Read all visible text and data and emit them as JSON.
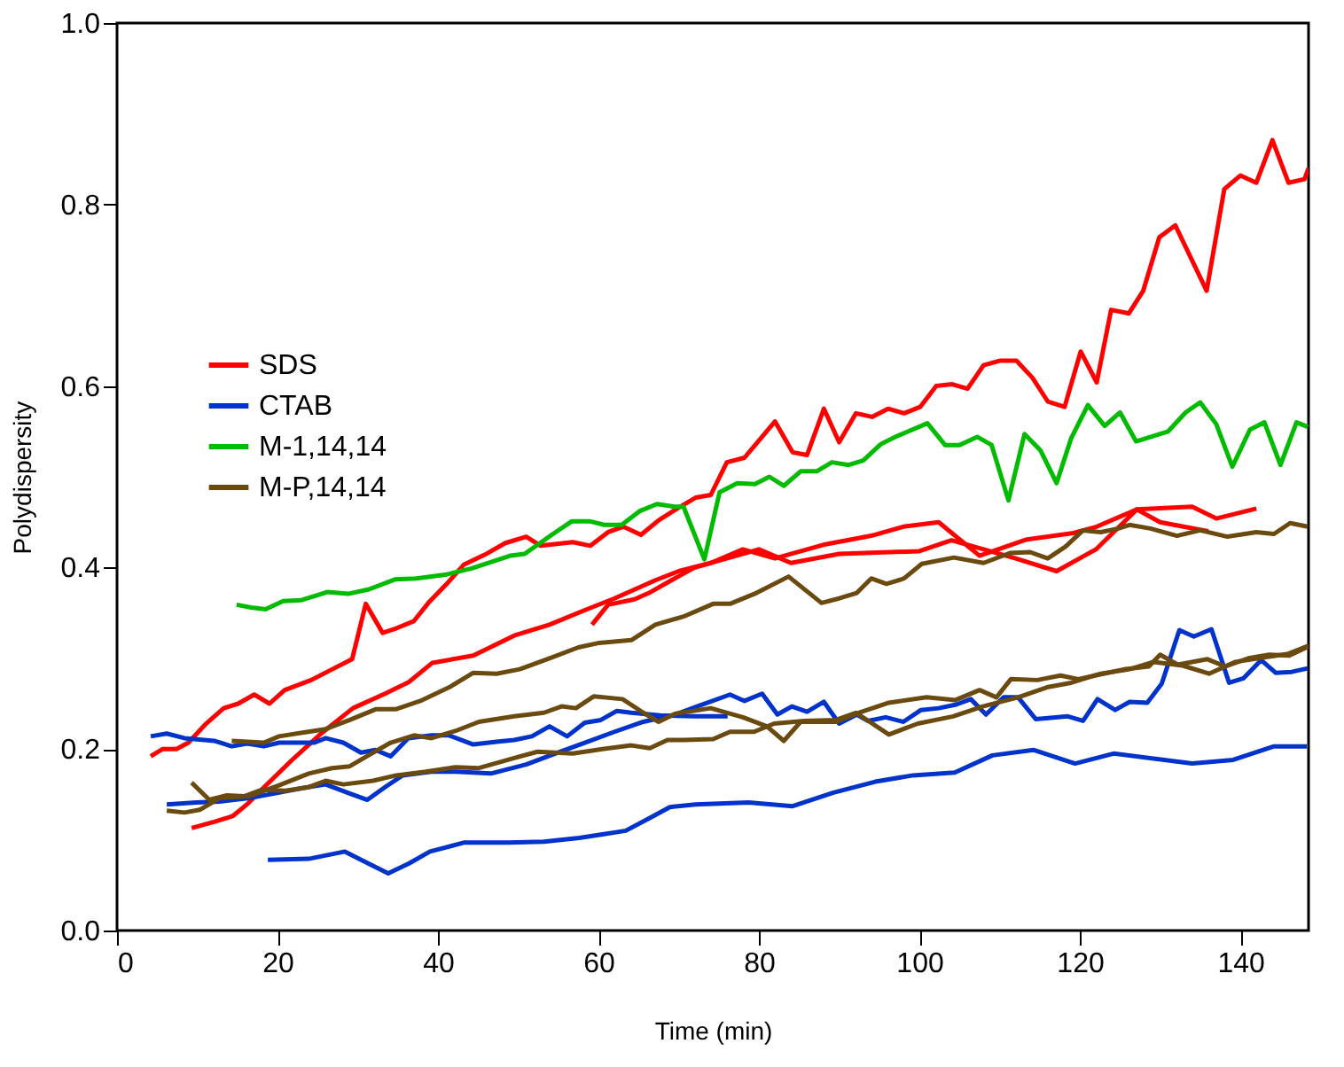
{
  "chart_data": {
    "type": "line",
    "xlabel": "Time (min)",
    "ylabel": "Polydispersity",
    "xlim": [
      0,
      148.5
    ],
    "xticks": [
      0,
      20,
      40,
      60,
      80,
      100,
      120,
      140
    ],
    "ylim": [
      0,
      1
    ],
    "yticks": [
      {
        "value": 0,
        "label": "0.0"
      },
      0.2,
      0.4,
      0.6,
      0.8,
      {
        "value": 1,
        "label": "1.0"
      }
    ],
    "grid": false,
    "legend": "left",
    "marker": "none",
    "line_style": "solid",
    "series": [
      {
        "name": "SDS",
        "color": "#ff0000",
        "x": [
          4.2,
          5.7,
          7.4,
          8.9,
          11.1,
          13.3,
          15.1,
          17.1,
          19,
          20.9,
          24.2,
          26.4,
          29.3,
          31,
          33.1,
          34.8,
          37,
          38.8,
          41.1,
          43.2,
          45.8,
          48.4,
          51,
          52.8,
          56.8,
          59,
          61.2,
          63.1,
          65.3,
          67.5,
          70,
          72.1,
          74,
          76,
          78.2,
          82,
          84.2,
          86,
          88.1,
          90,
          92.1,
          94.1,
          96.1,
          98.1,
          100.1,
          102.1,
          104.1,
          106,
          108,
          110.1,
          112.1,
          114.1,
          116,
          118.1,
          120.1,
          122.1,
          123.9,
          126.1,
          127.9,
          129.9,
          131.9,
          135.8,
          138,
          140,
          142,
          144,
          146,
          148,
          148.5
        ],
        "values": [
          0.192,
          0.2,
          0.2,
          0.207,
          0.228,
          0.245,
          0.25,
          0.26,
          0.25,
          0.265,
          0.276,
          0.286,
          0.299,
          0.36,
          0.328,
          0.333,
          0.341,
          0.361,
          0.382,
          0.403,
          0.414,
          0.427,
          0.434,
          0.424,
          0.428,
          0.424,
          0.439,
          0.445,
          0.436,
          0.452,
          0.466,
          0.477,
          0.48,
          0.516,
          0.521,
          0.561,
          0.527,
          0.524,
          0.575,
          0.538,
          0.57,
          0.566,
          0.575,
          0.57,
          0.577,
          0.6,
          0.602,
          0.597,
          0.623,
          0.628,
          0.628,
          0.609,
          0.583,
          0.577,
          0.638,
          0.604,
          0.684,
          0.68,
          0.705,
          0.764,
          0.777,
          0.705,
          0.817,
          0.832,
          0.824,
          0.871,
          0.824,
          0.828,
          0.84
        ]
      },
      {
        "color": "#ff0000",
        "x": [
          9.3,
          12.2,
          14.4,
          16.2,
          18,
          21.7,
          25.3,
          29.4,
          33.4,
          36.4,
          39.3,
          44.4,
          49.5,
          53.9,
          58.3,
          62,
          67.1,
          70,
          74,
          78,
          82,
          88,
          94,
          98,
          102.4,
          107.5,
          113.4,
          119.2,
          122.1,
          127.1,
          134,
          137,
          142
        ],
        "values": [
          0.113,
          0.12,
          0.126,
          0.139,
          0.155,
          0.187,
          0.216,
          0.245,
          0.261,
          0.274,
          0.295,
          0.303,
          0.325,
          0.337,
          0.353,
          0.366,
          0.386,
          0.396,
          0.405,
          0.42,
          0.41,
          0.425,
          0.435,
          0.445,
          0.45,
          0.413,
          0.431,
          0.438,
          0.445,
          0.464,
          0.467,
          0.454,
          0.465
        ]
      },
      {
        "color": "#ff0000",
        "x": [
          59.2,
          61.2,
          64.5,
          66.3,
          68.9,
          72,
          76,
          80,
          84,
          90,
          100,
          104,
          108,
          112,
          117.1,
          122,
          127.1,
          130,
          136
        ],
        "values": [
          0.337,
          0.359,
          0.365,
          0.372,
          0.385,
          0.4,
          0.41,
          0.42,
          0.405,
          0.415,
          0.418,
          0.43,
          0.42,
          0.41,
          0.396,
          0.42,
          0.464,
          0.45,
          0.44
        ]
      },
      {
        "name": "CTAB",
        "color": "#0033cc",
        "x": [
          4.2,
          6.2,
          8.4,
          12.1,
          14.3,
          16.2,
          18.3,
          20.2,
          24.6,
          26,
          28.2,
          30.4,
          32.2,
          34.1,
          36.3,
          39.2,
          41.4,
          44.4,
          47.3,
          49.5,
          51.7,
          53.9,
          56.1,
          58.3,
          60.3,
          62.3,
          64.1,
          67.7,
          72,
          76.1
        ],
        "values": [
          0.214,
          0.217,
          0.212,
          0.209,
          0.203,
          0.206,
          0.203,
          0.207,
          0.207,
          0.212,
          0.207,
          0.196,
          0.199,
          0.192,
          0.212,
          0.215,
          0.215,
          0.205,
          0.208,
          0.21,
          0.214,
          0.225,
          0.214,
          0.229,
          0.232,
          0.242,
          0.24,
          0.237,
          0.236,
          0.236
        ]
      },
      {
        "color": "#0033cc",
        "x": [
          6.2,
          9.9,
          12.8,
          16.5,
          20.2,
          23.1,
          26,
          29,
          31.2,
          33.4,
          35.6,
          39.2,
          42.2,
          46.6,
          51,
          54.6,
          58.3,
          62,
          65.6,
          69.6,
          72.3,
          76.4,
          78.2,
          80.4,
          82.3,
          84.1,
          86,
          88.1,
          90,
          92.2,
          93.6,
          95.8,
          98,
          100.2,
          102.4,
          104.6,
          106.4,
          108.3,
          110.5,
          112.3,
          114.5,
          118.5,
          120.4,
          122.2,
          124.4,
          126.2,
          128.4,
          130.2,
          132.4,
          134.2,
          136.4,
          138.6,
          140.4,
          142.6,
          144.4,
          146.4,
          148.4
        ],
        "values": [
          0.139,
          0.141,
          0.142,
          0.146,
          0.152,
          0.157,
          0.161,
          0.151,
          0.144,
          0.158,
          0.171,
          0.175,
          0.175,
          0.173,
          0.183,
          0.195,
          0.207,
          0.219,
          0.23,
          0.238,
          0.247,
          0.26,
          0.253,
          0.261,
          0.238,
          0.247,
          0.241,
          0.252,
          0.228,
          0.238,
          0.231,
          0.235,
          0.23,
          0.243,
          0.245,
          0.249,
          0.255,
          0.238,
          0.257,
          0.257,
          0.233,
          0.236,
          0.231,
          0.255,
          0.243,
          0.252,
          0.251,
          0.272,
          0.331,
          0.324,
          0.332,
          0.273,
          0.278,
          0.298,
          0.284,
          0.285,
          0.289
        ]
      },
      {
        "color": "#0033cc",
        "x": [
          18.8,
          23.9,
          28.4,
          31.3,
          33.8,
          36.4,
          39,
          43.3,
          48.8,
          53.2,
          57.6,
          60.5,
          63.4,
          66.4,
          68.9,
          72.1,
          78.7,
          84.2,
          89.3,
          94.5,
          99.2,
          104.4,
          109.1,
          114.2,
          119.4,
          124.2,
          134,
          139.1,
          144.2,
          148.3
        ],
        "values": [
          0.078,
          0.079,
          0.087,
          0.074,
          0.063,
          0.074,
          0.087,
          0.097,
          0.097,
          0.098,
          0.102,
          0.106,
          0.11,
          0.124,
          0.136,
          0.139,
          0.141,
          0.137,
          0.152,
          0.164,
          0.171,
          0.174,
          0.193,
          0.199,
          0.184,
          0.195,
          0.184,
          0.188,
          0.203,
          0.203
        ]
      },
      {
        "name": "M-1,14,14",
        "color": "#00bb00",
        "x": [
          14.9,
          16.7,
          18.5,
          20.7,
          22.9,
          26.2,
          28.8,
          31.4,
          34.7,
          37.3,
          40.9,
          44.2,
          49,
          50.8,
          54.5,
          56.7,
          58.9,
          60.7,
          62.9,
          65.1,
          67.3,
          69.5,
          70.6,
          73.2,
          75.1,
          77.3,
          79.5,
          81.3,
          83.1,
          85.2,
          87.2,
          89.1,
          91.2,
          93,
          95.2,
          97,
          101,
          103.2,
          105,
          107.2,
          109,
          111.1,
          113.1,
          115.1,
          117.1,
          118.9,
          121,
          123.1,
          125,
          127,
          131,
          133.2,
          135,
          137,
          139,
          141.2,
          143,
          145,
          147,
          148.4
        ],
        "values": [
          0.359,
          0.356,
          0.354,
          0.363,
          0.364,
          0.373,
          0.371,
          0.376,
          0.387,
          0.388,
          0.392,
          0.399,
          0.413,
          0.415,
          0.438,
          0.451,
          0.451,
          0.447,
          0.447,
          0.462,
          0.47,
          0.467,
          0.467,
          0.409,
          0.483,
          0.493,
          0.492,
          0.5,
          0.49,
          0.506,
          0.506,
          0.516,
          0.513,
          0.518,
          0.536,
          0.544,
          0.559,
          0.535,
          0.535,
          0.544,
          0.535,
          0.474,
          0.547,
          0.529,
          0.493,
          0.542,
          0.579,
          0.556,
          0.571,
          0.539,
          0.55,
          0.571,
          0.582,
          0.558,
          0.511,
          0.552,
          0.56,
          0.513,
          0.56,
          0.555
        ]
      },
      {
        "name": "M-P,14,14",
        "color": "#6b4a10",
        "x": [
          14.3,
          18.3,
          20.2,
          23.1,
          26,
          29,
          32.3,
          34.8,
          37.8,
          41.4,
          44.4,
          47.3,
          50.2,
          53.9,
          57.5,
          60.1,
          64.1,
          67.1,
          70.6,
          74.3,
          76.4,
          79.7,
          83.7,
          87.8,
          90,
          92.2,
          94,
          95.9,
          98.1,
          100.3,
          104.3,
          108,
          111.3,
          113.8,
          116,
          118.2,
          120.4,
          122.6,
          124.8,
          126.2,
          128.8,
          132.1,
          135,
          138.4,
          142,
          144.2,
          146.2,
          148.4
        ],
        "values": [
          0.209,
          0.207,
          0.214,
          0.218,
          0.222,
          0.232,
          0.244,
          0.244,
          0.253,
          0.268,
          0.284,
          0.283,
          0.288,
          0.3,
          0.312,
          0.317,
          0.32,
          0.337,
          0.346,
          0.36,
          0.36,
          0.372,
          0.39,
          0.361,
          0.366,
          0.372,
          0.388,
          0.382,
          0.388,
          0.404,
          0.411,
          0.405,
          0.416,
          0.417,
          0.41,
          0.423,
          0.441,
          0.439,
          0.443,
          0.447,
          0.443,
          0.435,
          0.441,
          0.434,
          0.439,
          0.437,
          0.449,
          0.445
        ]
      },
      {
        "color": "#6b4a10",
        "x": [
          6.2,
          8.4,
          10.3,
          12.8,
          16.5,
          20.2,
          23.9,
          26.8,
          29,
          31.9,
          34.1,
          37,
          39.2,
          42.2,
          45.1,
          49.5,
          53.2,
          55.4,
          57.2,
          59.4,
          63,
          65.6,
          67.5,
          69.6,
          74,
          78,
          81,
          83.1,
          85.2,
          89.6,
          92.5,
          96.2,
          100.9,
          104.5,
          107.5,
          109.6,
          111.4,
          114.7,
          117.6,
          119.8,
          122.4,
          125.6,
          128.6,
          130,
          132.2,
          135.9,
          138.1,
          141,
          143.6,
          146.1,
          148.5
        ],
        "values": [
          0.132,
          0.13,
          0.133,
          0.146,
          0.148,
          0.16,
          0.173,
          0.179,
          0.181,
          0.196,
          0.207,
          0.215,
          0.212,
          0.22,
          0.23,
          0.236,
          0.24,
          0.247,
          0.245,
          0.258,
          0.255,
          0.24,
          0.23,
          0.239,
          0.245,
          0.235,
          0.225,
          0.209,
          0.23,
          0.23,
          0.24,
          0.251,
          0.257,
          0.254,
          0.265,
          0.257,
          0.277,
          0.276,
          0.281,
          0.277,
          0.282,
          0.288,
          0.291,
          0.304,
          0.293,
          0.299,
          0.291,
          0.3,
          0.304,
          0.303,
          0.313
        ]
      },
      {
        "color": "#6b4a10",
        "x": [
          9.3,
          11.5,
          13.7,
          15.9,
          18,
          21,
          23.9,
          26,
          28.2,
          31.9,
          34.8,
          38.5,
          42.2,
          45.1,
          49.5,
          52.4,
          56.8,
          60.5,
          64.1,
          66.4,
          68.6,
          70.6,
          74.3,
          76.4,
          79.4,
          81.9,
          85.6,
          89.6,
          92.1,
          96.2,
          99.8,
          104.2,
          107.9,
          112.3,
          115.9,
          118.9,
          122.6,
          126.2,
          129.2,
          132.8,
          136.1,
          139.4,
          143,
          146,
          148.5
        ],
        "values": [
          0.163,
          0.144,
          0.149,
          0.148,
          0.155,
          0.154,
          0.158,
          0.165,
          0.161,
          0.165,
          0.171,
          0.175,
          0.18,
          0.179,
          0.19,
          0.197,
          0.195,
          0.2,
          0.204,
          0.201,
          0.21,
          0.21,
          0.211,
          0.219,
          0.219,
          0.228,
          0.231,
          0.232,
          0.24,
          0.216,
          0.228,
          0.236,
          0.247,
          0.257,
          0.268,
          0.273,
          0.283,
          0.288,
          0.296,
          0.292,
          0.283,
          0.296,
          0.301,
          0.305,
          0.314
        ]
      }
    ]
  }
}
